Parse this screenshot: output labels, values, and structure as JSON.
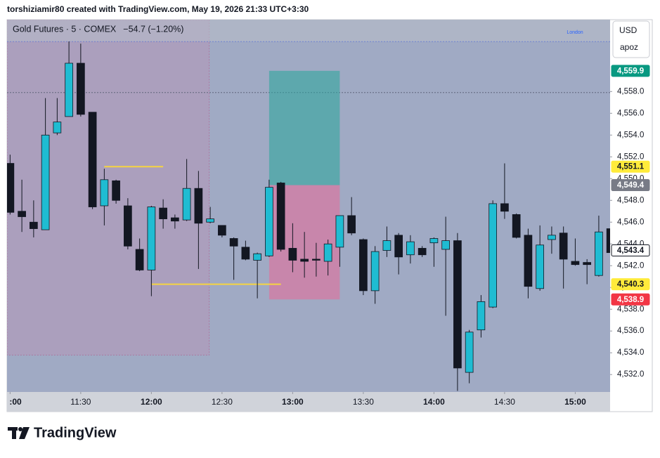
{
  "header": {
    "credit": "torshiziamir80 created with TradingView.com, May 19, 2026 21:33 UTC+3:30"
  },
  "footer": {
    "brand": "TradingView"
  },
  "chart_data": {
    "type": "candlestick",
    "title": "Gold Futures · 5 · COMEX",
    "change": "−54.7 (−1.20%)",
    "currency": "USD",
    "account": "apoz",
    "session_label": "London",
    "up_color": "#1fbcd2",
    "down_color": "#131722",
    "x": [
      660,
      665,
      670,
      675,
      680,
      685,
      690,
      695,
      700,
      705,
      710,
      715,
      720,
      725,
      730,
      735,
      740,
      745,
      750,
      755,
      760,
      765,
      770,
      775,
      780,
      785,
      790,
      795,
      800,
      805,
      810,
      815,
      820,
      825,
      830,
      835,
      840,
      845,
      850,
      855,
      860,
      865,
      870,
      875,
      880,
      885,
      890,
      895,
      900,
      905,
      910,
      915
    ],
    "open": [
      4551.4,
      4547.0,
      4546.0,
      4545.3,
      4554.2,
      4555.7,
      4560.6,
      4556.1,
      4547.5,
      4549.8,
      4547.5,
      4543.5,
      4541.6,
      4547.3,
      4546.4,
      4546.2,
      4549.1,
      4546.0,
      4545.7,
      4544.5,
      4543.7,
      4542.5,
      4542.9,
      4549.6,
      4543.6,
      4542.6,
      4542.6,
      4542.4,
      4543.7,
      4546.6,
      4544.4,
      4539.7,
      4543.4,
      4544.8,
      4543.0,
      4543.6,
      4544.1,
      4543.5,
      4544.3,
      4532.2,
      4536.1,
      4538.2,
      4547.7,
      4546.7,
      4544.8,
      4539.9,
      4544.4,
      4545.0,
      4542.4,
      4542.3,
      4541.1,
      4545.4
    ],
    "high": [
      4552.2,
      4549.9,
      4548.0,
      4557.4,
      4557.4,
      4562.6,
      4562.4,
      4556.1,
      4550.9,
      4549.9,
      4548.2,
      4544.5,
      4547.5,
      4548.1,
      4546.7,
      4551.8,
      4550.7,
      4547.4,
      4545.7,
      4544.6,
      4544.3,
      4543.2,
      4549.9,
      4549.7,
      4545.9,
      4545.1,
      4544.1,
      4544.4,
      4546.6,
      4548.3,
      4544.5,
      4543.8,
      4545.6,
      4545.0,
      4544.8,
      4543.8,
      4544.6,
      4546.5,
      4545.0,
      4536.1,
      4539.3,
      4548.0,
      4551.4,
      4546.8,
      4545.4,
      4545.7,
      4545.6,
      4545.6,
      4544.5,
      4542.6,
      4546.6,
      4545.5
    ],
    "low": [
      4546.7,
      4545.1,
      4544.6,
      4545.3,
      4554.0,
      4555.7,
      4555.7,
      4547.2,
      4545.7,
      4547.7,
      4543.5,
      4541.5,
      4539.2,
      4545.4,
      4545.4,
      4546.1,
      4541.7,
      4545.9,
      4544.6,
      4540.7,
      4542.5,
      4539.0,
      4542.8,
      4543.3,
      4541.4,
      4540.9,
      4541.0,
      4541.1,
      4541.9,
      4544.8,
      4539.3,
      4538.5,
      4542.8,
      4541.2,
      4542.2,
      4542.8,
      4541.9,
      4537.4,
      4530.5,
      4531.2,
      4535.4,
      4538.1,
      4546.3,
      4544.5,
      4539.0,
      4539.7,
      4543.1,
      4539.9,
      4542.0,
      4540.3,
      4541.0,
      4543.0
    ],
    "close": [
      4546.9,
      4546.5,
      4545.4,
      4554.0,
      4555.2,
      4560.6,
      4555.9,
      4547.4,
      4549.9,
      4548.0,
      4543.8,
      4541.6,
      4547.4,
      4546.3,
      4546.1,
      4549.1,
      4545.9,
      4546.3,
      4544.8,
      4543.8,
      4542.6,
      4543.1,
      4549.2,
      4543.5,
      4542.5,
      4542.4,
      4542.5,
      4544.0,
      4546.6,
      4545.0,
      4539.7,
      4543.3,
      4544.3,
      4542.8,
      4544.2,
      4543.0,
      4544.5,
      4544.3,
      4532.6,
      4535.9,
      4538.7,
      4547.7,
      4547.0,
      4544.6,
      4540.1,
      4543.9,
      4544.8,
      4542.6,
      4542.1,
      4542.1,
      4545.1,
      4543.2
    ],
    "xlim": [
      658.7,
      914.8
    ],
    "xticks": [
      {
        "value": 660,
        "label": ":00"
      },
      {
        "value": 690,
        "label": "11:30"
      },
      {
        "value": 720,
        "label": "12:00"
      },
      {
        "value": 750,
        "label": "12:30"
      },
      {
        "value": 780,
        "label": "13:00"
      },
      {
        "value": 810,
        "label": "13:30"
      },
      {
        "value": 840,
        "label": "14:00"
      },
      {
        "value": 870,
        "label": "14:30"
      },
      {
        "value": 900,
        "label": "15:00"
      }
    ],
    "ylim": [
      4530.4,
      4564.6
    ],
    "yticks": [
      {
        "value": 4532,
        "label": "4,532.0"
      },
      {
        "value": 4534,
        "label": "4,534.0"
      },
      {
        "value": 4536,
        "label": "4,536.0"
      },
      {
        "value": 4538,
        "label": "4,538.0"
      },
      {
        "value": 4540,
        "label": "4,540.0"
      },
      {
        "value": 4542,
        "label": "4,542.0"
      },
      {
        "value": 4544,
        "label": "4,544.0"
      },
      {
        "value": 4546,
        "label": "4,546.0"
      },
      {
        "value": 4548,
        "label": "4,548.0"
      },
      {
        "value": 4550,
        "label": "4,550.0"
      },
      {
        "value": 4552,
        "label": "4,552.0"
      },
      {
        "value": 4554,
        "label": "4,554.0"
      },
      {
        "value": 4556,
        "label": "4,556.0"
      },
      {
        "value": 4558,
        "label": "4,558.0"
      }
    ],
    "grid": false,
    "price_tags": [
      {
        "value": 4559.9,
        "label": "4,559.9",
        "color": "#089981"
      },
      {
        "value": 4551.1,
        "label": "4,551.1",
        "color": "#ffeb3b"
      },
      {
        "value": 4549.4,
        "label": "4,549.4",
        "color": "#787b86"
      },
      {
        "value": 4543.4,
        "label": "4,543.4",
        "color": "#ffffff"
      },
      {
        "value": 4540.3,
        "label": "4,540.3",
        "color": "#ffeb3b"
      },
      {
        "value": 4538.9,
        "label": "4,538.9",
        "color": "#f23645"
      }
    ],
    "position": {
      "start": 770,
      "end": 800,
      "entry": 4549.4,
      "target": 4559.9,
      "stop": 4538.9
    },
    "session": {
      "start": 658.7,
      "end": 744.6,
      "low": 4533.8
    },
    "lines": [
      {
        "value": 4551.1,
        "start": 700,
        "end": 725,
        "color": "#f5d442"
      },
      {
        "value": 4540.3,
        "start": 720,
        "end": 775,
        "color": "#f5d442"
      }
    ],
    "levels": [
      {
        "value": 4562.6,
        "color": "#3b5bdb"
      },
      {
        "value": 4557.9,
        "color": "#555a70"
      }
    ]
  }
}
